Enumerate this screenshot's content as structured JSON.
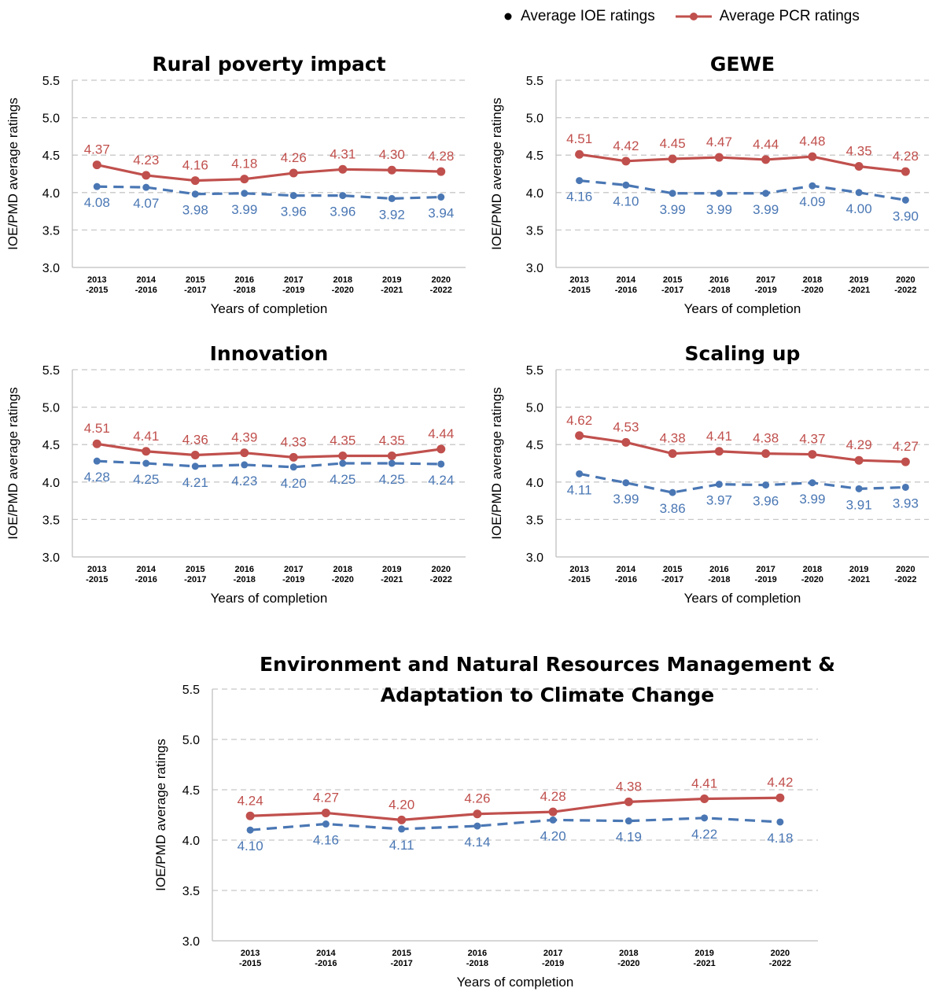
{
  "legend": {
    "ioe_label": "Average IOE ratings",
    "pcr_label": "Average PCR ratings"
  },
  "colors": {
    "ioe": "#4a77b4",
    "pcr": "#c0504d",
    "grid": "#c8c8c8",
    "axis": "#bfbfbf"
  },
  "chart_data": [
    {
      "type": "line",
      "title": "Rural poverty impact",
      "xlabel": "Years of completion",
      "ylabel": "IOE/PMD average ratings",
      "ylim": [
        3.0,
        5.5
      ],
      "yticks": [
        "3.0",
        "3.5",
        "4.0",
        "4.5",
        "5.0",
        "5.5"
      ],
      "categories": [
        [
          "2013",
          "-2015"
        ],
        [
          "2014",
          "-2016"
        ],
        [
          "2015",
          "-2017"
        ],
        [
          "2016",
          "-2018"
        ],
        [
          "2017",
          "-2019"
        ],
        [
          "2018",
          "-2020"
        ],
        [
          "2019",
          "-2021"
        ],
        [
          "2020",
          "-2022"
        ]
      ],
      "series": [
        {
          "name": "Average PCR ratings",
          "style": "solid",
          "values": [
            4.37,
            4.23,
            4.16,
            4.18,
            4.26,
            4.31,
            4.3,
            4.28
          ],
          "labels": [
            "4.37",
            "4.23",
            "4.16",
            "4.18",
            "4.26",
            "4.31",
            "4.30",
            "4.28"
          ]
        },
        {
          "name": "Average IOE ratings",
          "style": "dashed",
          "values": [
            4.08,
            4.07,
            3.98,
            3.99,
            3.96,
            3.96,
            3.92,
            3.94
          ],
          "labels": [
            "4.08",
            "4.07",
            "3.98",
            "3.99",
            "3.96",
            "3.96",
            "3.92",
            "3.94"
          ]
        }
      ],
      "grid": true
    },
    {
      "type": "line",
      "title": "GEWE",
      "xlabel": "Years of completion",
      "ylabel": "IOE/PMD average ratings",
      "ylim": [
        3.0,
        5.5
      ],
      "yticks": [
        "3.0",
        "3.5",
        "4.0",
        "4.5",
        "5.0",
        "5.5"
      ],
      "categories": [
        [
          "2013",
          "-2015"
        ],
        [
          "2014",
          "-2016"
        ],
        [
          "2015",
          "-2017"
        ],
        [
          "2016",
          "-2018"
        ],
        [
          "2017",
          "-2019"
        ],
        [
          "2018",
          "-2020"
        ],
        [
          "2019",
          "-2021"
        ],
        [
          "2020",
          "-2022"
        ]
      ],
      "series": [
        {
          "name": "Average PCR ratings",
          "style": "solid",
          "values": [
            4.51,
            4.42,
            4.45,
            4.47,
            4.44,
            4.48,
            4.35,
            4.28
          ],
          "labels": [
            "4.51",
            "4.42",
            "4.45",
            "4.47",
            "4.44",
            "4.48",
            "4.35",
            "4.28"
          ]
        },
        {
          "name": "Average IOE ratings",
          "style": "dashed",
          "values": [
            4.16,
            4.1,
            3.99,
            3.99,
            3.99,
            4.09,
            4.0,
            3.9
          ],
          "labels": [
            "4.16",
            "4.10",
            "3.99",
            "3.99",
            "3.99",
            "4.09",
            "4.00",
            "3.90"
          ]
        }
      ],
      "grid": true
    },
    {
      "type": "line",
      "title": "Innovation",
      "xlabel": "Years of completion",
      "ylabel": "IOE/PMD average ratings",
      "ylim": [
        3.0,
        5.5
      ],
      "yticks": [
        "3.0",
        "3.5",
        "4.0",
        "4.5",
        "5.0",
        "5.5"
      ],
      "categories": [
        [
          "2013",
          "-2015"
        ],
        [
          "2014",
          "-2016"
        ],
        [
          "2015",
          "-2017"
        ],
        [
          "2016",
          "-2018"
        ],
        [
          "2017",
          "-2019"
        ],
        [
          "2018",
          "-2020"
        ],
        [
          "2019",
          "-2021"
        ],
        [
          "2020",
          "-2022"
        ]
      ],
      "series": [
        {
          "name": "Average PCR ratings",
          "style": "solid",
          "values": [
            4.51,
            4.41,
            4.36,
            4.39,
            4.33,
            4.35,
            4.35,
            4.44
          ],
          "labels": [
            "4.51",
            "4.41",
            "4.36",
            "4.39",
            "4.33",
            "4.35",
            "4.35",
            "4.44"
          ]
        },
        {
          "name": "Average IOE ratings",
          "style": "dashed",
          "values": [
            4.28,
            4.25,
            4.21,
            4.23,
            4.2,
            4.25,
            4.25,
            4.24
          ],
          "labels": [
            "4.28",
            "4.25",
            "4.21",
            "4.23",
            "4.20",
            "4.25",
            "4.25",
            "4.24"
          ]
        }
      ],
      "grid": true
    },
    {
      "type": "line",
      "title": "Scaling up",
      "xlabel": "Years of completion",
      "ylabel": "IOE/PMD average ratings",
      "ylim": [
        3.0,
        5.5
      ],
      "yticks": [
        "3.0",
        "3.5",
        "4.0",
        "4.5",
        "5.0",
        "5.5"
      ],
      "categories": [
        [
          "2013",
          "-2015"
        ],
        [
          "2014",
          "-2016"
        ],
        [
          "2015",
          "-2017"
        ],
        [
          "2016",
          "-2018"
        ],
        [
          "2017",
          "-2019"
        ],
        [
          "2018",
          "-2020"
        ],
        [
          "2019",
          "-2021"
        ],
        [
          "2020",
          "-2022"
        ]
      ],
      "series": [
        {
          "name": "Average PCR ratings",
          "style": "solid",
          "values": [
            4.62,
            4.53,
            4.38,
            4.41,
            4.38,
            4.37,
            4.29,
            4.27
          ],
          "labels": [
            "4.62",
            "4.53",
            "4.38",
            "4.41",
            "4.38",
            "4.37",
            "4.29",
            "4.27"
          ]
        },
        {
          "name": "Average IOE ratings",
          "style": "dashed",
          "values": [
            4.11,
            3.99,
            3.86,
            3.97,
            3.96,
            3.99,
            3.91,
            3.93
          ],
          "labels": [
            "4.11",
            "3.99",
            "3.86",
            "3.97",
            "3.96",
            "3.99",
            "3.91",
            "3.93"
          ]
        }
      ],
      "grid": true
    },
    {
      "type": "line",
      "title": [
        "Environment and Natural Resources Management &",
        "Adaptation to Climate Change"
      ],
      "xlabel": "Years of completion",
      "ylabel": "IOE/PMD average ratings",
      "ylim": [
        3.0,
        5.5
      ],
      "yticks": [
        "3.0",
        "3.5",
        "4.0",
        "4.5",
        "5.0",
        "5.5"
      ],
      "categories": [
        [
          "2013",
          "-2015"
        ],
        [
          "2014",
          "-2016"
        ],
        [
          "2015",
          "-2017"
        ],
        [
          "2016",
          "-2018"
        ],
        [
          "2017",
          "-2019"
        ],
        [
          "2018",
          "-2020"
        ],
        [
          "2019",
          "-2021"
        ],
        [
          "2020",
          "-2022"
        ]
      ],
      "series": [
        {
          "name": "Average PCR ratings",
          "style": "solid",
          "values": [
            4.24,
            4.27,
            4.2,
            4.26,
            4.28,
            4.38,
            4.41,
            4.42
          ],
          "labels": [
            "4.24",
            "4.27",
            "4.20",
            "4.26",
            "4.28",
            "4.38",
            "4.41",
            "4.42"
          ]
        },
        {
          "name": "Average IOE ratings",
          "style": "dashed",
          "values": [
            4.1,
            4.16,
            4.11,
            4.14,
            4.2,
            4.19,
            4.22,
            4.18
          ],
          "labels": [
            "4.10",
            "4.16",
            "4.11",
            "4.14",
            "4.20",
            "4.19",
            "4.22",
            "4.18"
          ]
        }
      ],
      "grid": true
    }
  ]
}
